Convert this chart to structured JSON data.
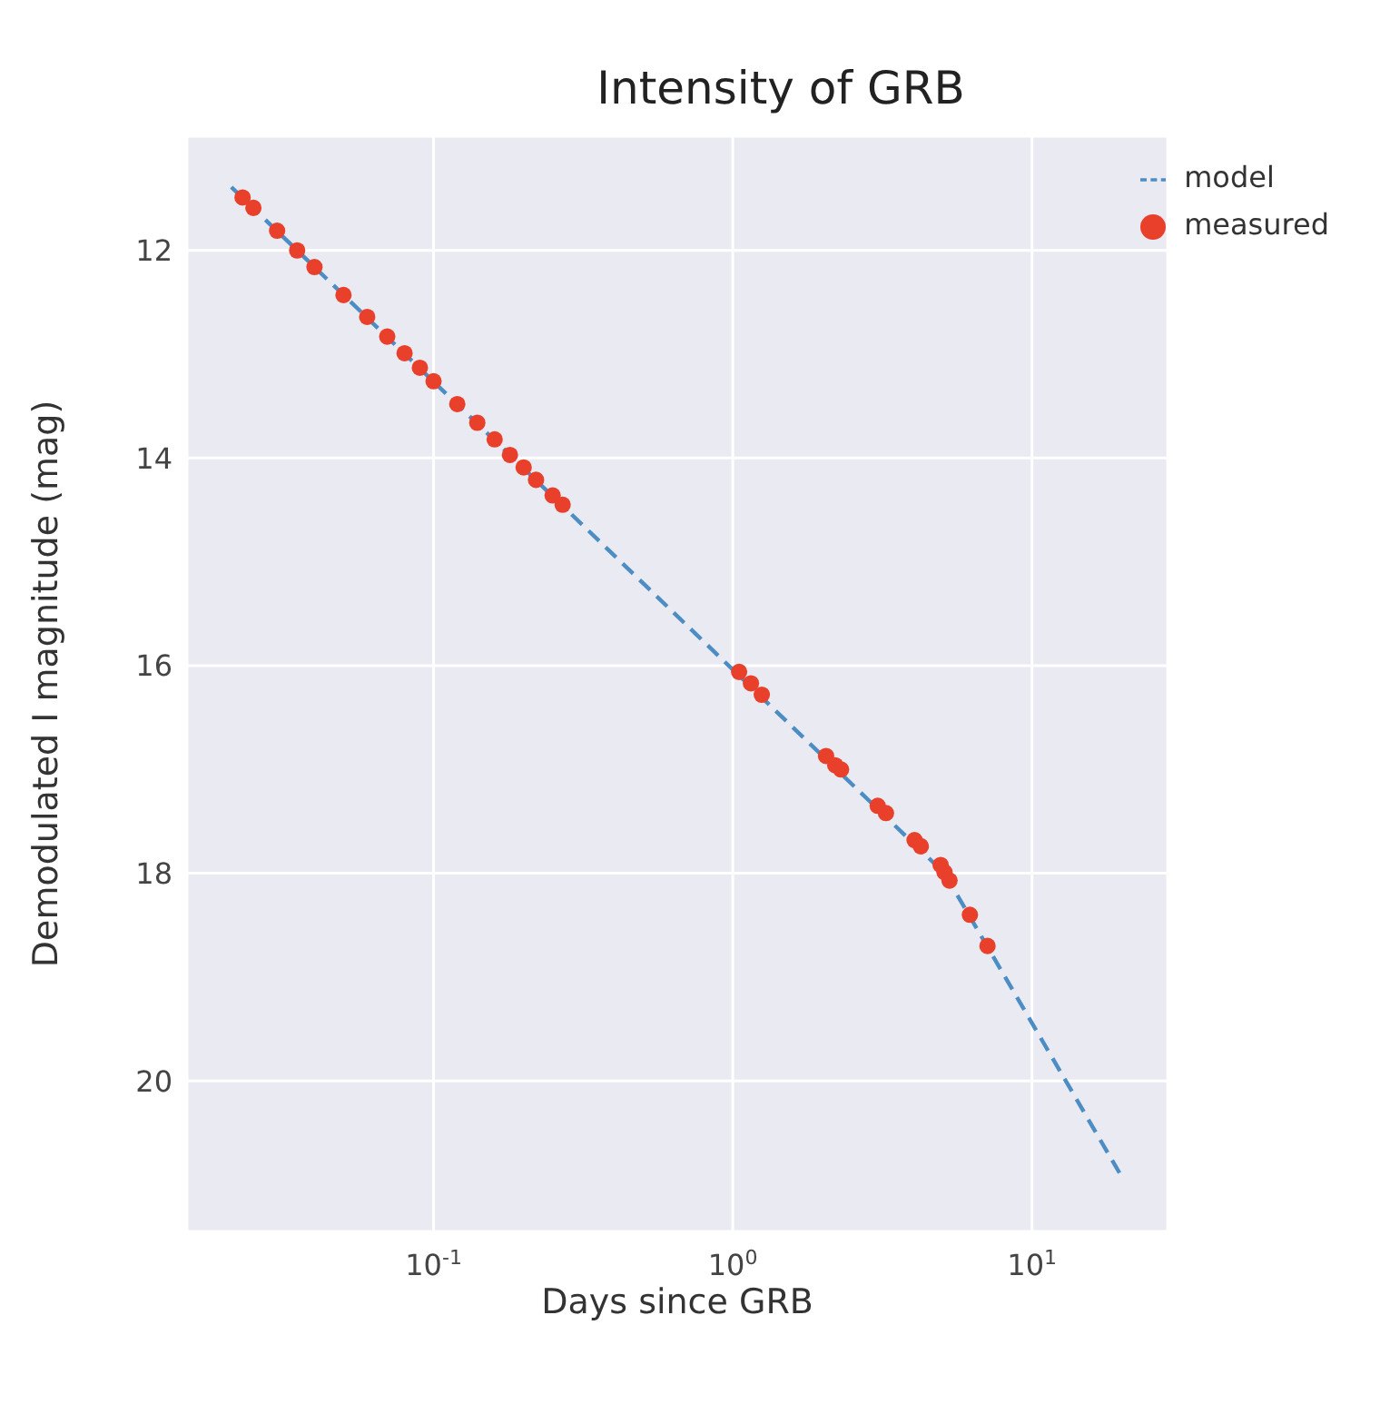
{
  "chart_data": {
    "type": "line",
    "title": "Intensity of GRB",
    "xlabel": "Days since GRB",
    "ylabel": "Demodulated I magnitude (mag)",
    "log": "x",
    "grid": true,
    "legend": "top right",
    "xlim": [
      0.015,
      28.4
    ],
    "xticks": [
      {
        "value": 0.1,
        "label": "10$^{-1}$"
      },
      {
        "value": 1,
        "label": "10$^{0}$"
      },
      {
        "value": 10,
        "label": "10$^{1}$"
      }
    ],
    "ylim": [
      21.45,
      10.9
    ],
    "yticks": [
      12,
      14,
      16,
      18,
      20
    ],
    "series": [
      {
        "name": "model",
        "color": "#4c8dc4",
        "line_style": "dashed",
        "marker": "none",
        "x": [
          0.0211,
          5.1,
          20.2
        ],
        "values": [
          11.39,
          18.0,
          20.95
        ]
      },
      {
        "name": "measured",
        "type": "scatter",
        "color": "#e8402a",
        "marker": "circle",
        "x": [
          0.023,
          0.025,
          0.03,
          0.035,
          0.04,
          0.05,
          0.06,
          0.07,
          0.08,
          0.09,
          0.1,
          0.12,
          0.14,
          0.16,
          0.18,
          0.2,
          0.22,
          0.25,
          0.27,
          1.05,
          1.15,
          1.25,
          2.05,
          2.2,
          2.3,
          3.05,
          3.25,
          4.05,
          4.25,
          4.95,
          5.1,
          5.3,
          6.2,
          7.1
        ],
        "values": [
          11.49,
          11.59,
          11.81,
          12.0,
          12.16,
          12.43,
          12.64,
          12.83,
          12.99,
          13.13,
          13.26,
          13.48,
          13.66,
          13.82,
          13.97,
          14.09,
          14.21,
          14.36,
          14.45,
          16.06,
          16.17,
          16.28,
          16.87,
          16.96,
          17.0,
          17.35,
          17.42,
          17.68,
          17.74,
          17.92,
          17.99,
          18.07,
          18.4,
          18.7
        ]
      }
    ]
  }
}
